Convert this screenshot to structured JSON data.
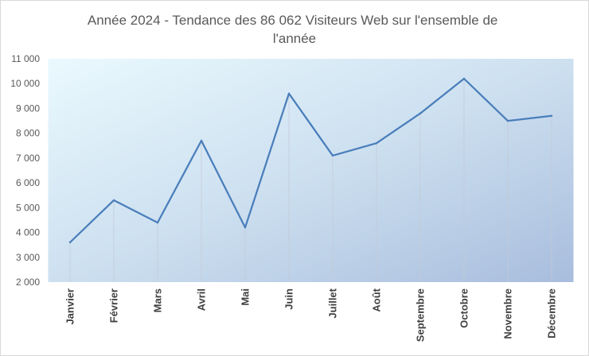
{
  "chart_data": {
    "type": "line",
    "title_lines": [
      "Année 2024 - Tendance des 86 062 Visiteurs Web sur l'ensemble de",
      "l'année"
    ],
    "xlabel": "",
    "ylabel": "",
    "categories": [
      "Janvier",
      "Février",
      "Mars",
      "Avril",
      "Mai",
      "Juin",
      "Juillet",
      "Août",
      "Septembre",
      "Octobre",
      "Novembre",
      "Décembre"
    ],
    "values": [
      3600,
      5300,
      4400,
      7700,
      4200,
      9600,
      7100,
      7600,
      8800,
      10200,
      8500,
      8700
    ],
    "ylim": [
      2000,
      11000
    ],
    "yticks": [
      2000,
      3000,
      4000,
      5000,
      6000,
      7000,
      8000,
      9000,
      10000,
      11000
    ],
    "ytick_labels": [
      "2 000",
      "3 000",
      "4 000",
      "5 000",
      "6 000",
      "7 000",
      "8 000",
      "9 000",
      "10 000",
      "11 000"
    ],
    "grid": false,
    "drop_lines": true,
    "legend": "none",
    "colors": {
      "line": "#4a7ebb",
      "drop_line": "#c3cad6",
      "plot_gradient": [
        "#eaf9fe",
        "#cde0f0",
        "#a8bddd"
      ],
      "title_text": "#595959",
      "y_tick_text": "#595959",
      "x_tick_text": "#404040",
      "border": "#d9d9d9",
      "background": "#ffffff"
    }
  }
}
